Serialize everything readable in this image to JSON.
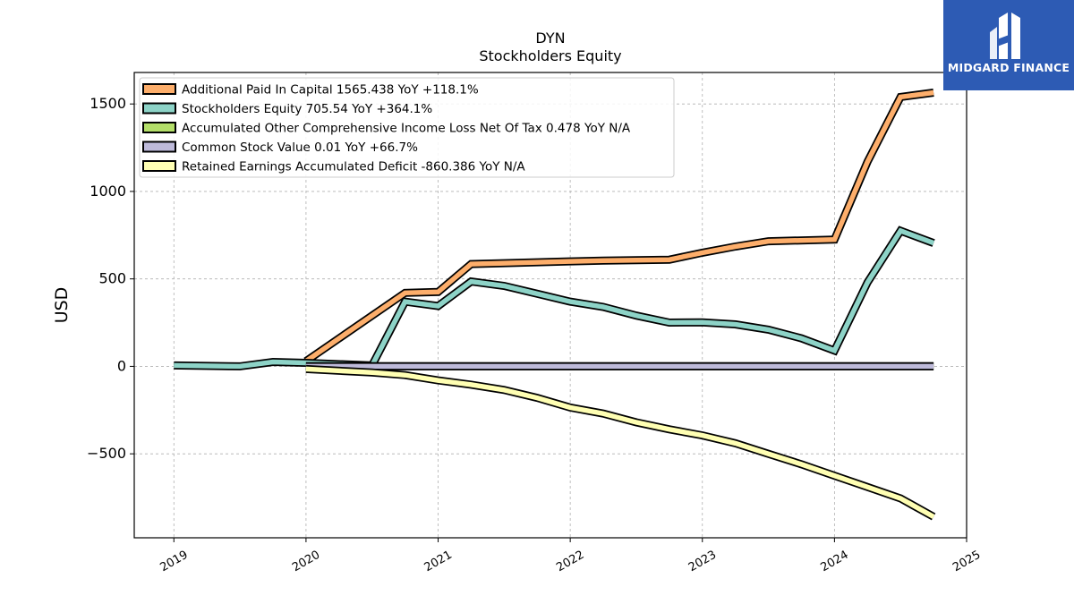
{
  "brand": {
    "name": "MIDGARD FINANCE",
    "bg_color": "#2d5bb4"
  },
  "chart_data": {
    "type": "line",
    "title": "DYN",
    "subtitle": "Stockholders  Equity",
    "xlabel": "",
    "ylabel": "USD",
    "xlim": [
      2018.7,
      2025.0
    ],
    "ylim": [
      -980,
      1680
    ],
    "x_ticks": [
      "2019",
      "2020",
      "2021",
      "2022",
      "2023",
      "2024",
      "2025"
    ],
    "y_ticks": [
      -500,
      0,
      500,
      1000,
      1500
    ],
    "grid": true,
    "legend_position": "top-left",
    "series": [
      {
        "name": "Additional Paid In Capital  1565.438 YoY +118.1%",
        "color": "#fdae6b",
        "points": [
          [
            2020.0,
            30
          ],
          [
            2020.75,
            420
          ],
          [
            2021.0,
            425
          ],
          [
            2021.25,
            585
          ],
          [
            2021.5,
            590
          ],
          [
            2022.0,
            600
          ],
          [
            2022.25,
            605
          ],
          [
            2022.5,
            607
          ],
          [
            2022.75,
            610
          ],
          [
            2023.0,
            650
          ],
          [
            2023.25,
            685
          ],
          [
            2023.5,
            715
          ],
          [
            2024.0,
            725
          ],
          [
            2024.25,
            1170
          ],
          [
            2024.5,
            1540
          ],
          [
            2024.75,
            1565
          ]
        ]
      },
      {
        "name": "Stockholders Equity  705.54 YoY +364.1%",
        "color": "#8dd3c7",
        "points": [
          [
            2019.0,
            5
          ],
          [
            2019.5,
            0
          ],
          [
            2019.75,
            25
          ],
          [
            2020.0,
            20
          ],
          [
            2020.5,
            5
          ],
          [
            2020.75,
            370
          ],
          [
            2021.0,
            345
          ],
          [
            2021.25,
            485
          ],
          [
            2021.5,
            460
          ],
          [
            2021.75,
            415
          ],
          [
            2022.0,
            370
          ],
          [
            2022.25,
            340
          ],
          [
            2022.5,
            290
          ],
          [
            2022.75,
            250
          ],
          [
            2023.0,
            252
          ],
          [
            2023.25,
            240
          ],
          [
            2023.5,
            210
          ],
          [
            2023.75,
            160
          ],
          [
            2024.0,
            90
          ],
          [
            2024.25,
            480
          ],
          [
            2024.5,
            775
          ],
          [
            2024.75,
            705
          ]
        ]
      },
      {
        "name": "Accumulated Other Comprehensive Income Loss Net Of Tax  0.478 YoY N/A",
        "color": "#b3de69",
        "points": [
          [
            2020.0,
            0.4
          ],
          [
            2024.75,
            0.478
          ]
        ]
      },
      {
        "name": "Common Stock Value  0.01 YoY +66.7%",
        "color": "#bebada",
        "points": [
          [
            2020.0,
            0
          ],
          [
            2024.75,
            0
          ]
        ]
      },
      {
        "name": "Retained Earnings Accumulated Deficit  -860.386 YoY N/A",
        "color": "#ffffb3",
        "points": [
          [
            2020.0,
            -15
          ],
          [
            2020.5,
            -35
          ],
          [
            2020.75,
            -50
          ],
          [
            2021.0,
            -80
          ],
          [
            2021.25,
            -105
          ],
          [
            2021.5,
            -135
          ],
          [
            2021.75,
            -180
          ],
          [
            2022.0,
            -235
          ],
          [
            2022.25,
            -270
          ],
          [
            2022.5,
            -320
          ],
          [
            2022.75,
            -360
          ],
          [
            2023.0,
            -395
          ],
          [
            2023.25,
            -440
          ],
          [
            2023.5,
            -500
          ],
          [
            2023.75,
            -560
          ],
          [
            2024.0,
            -625
          ],
          [
            2024.25,
            -690
          ],
          [
            2024.5,
            -755
          ],
          [
            2024.75,
            -860
          ]
        ]
      }
    ]
  }
}
